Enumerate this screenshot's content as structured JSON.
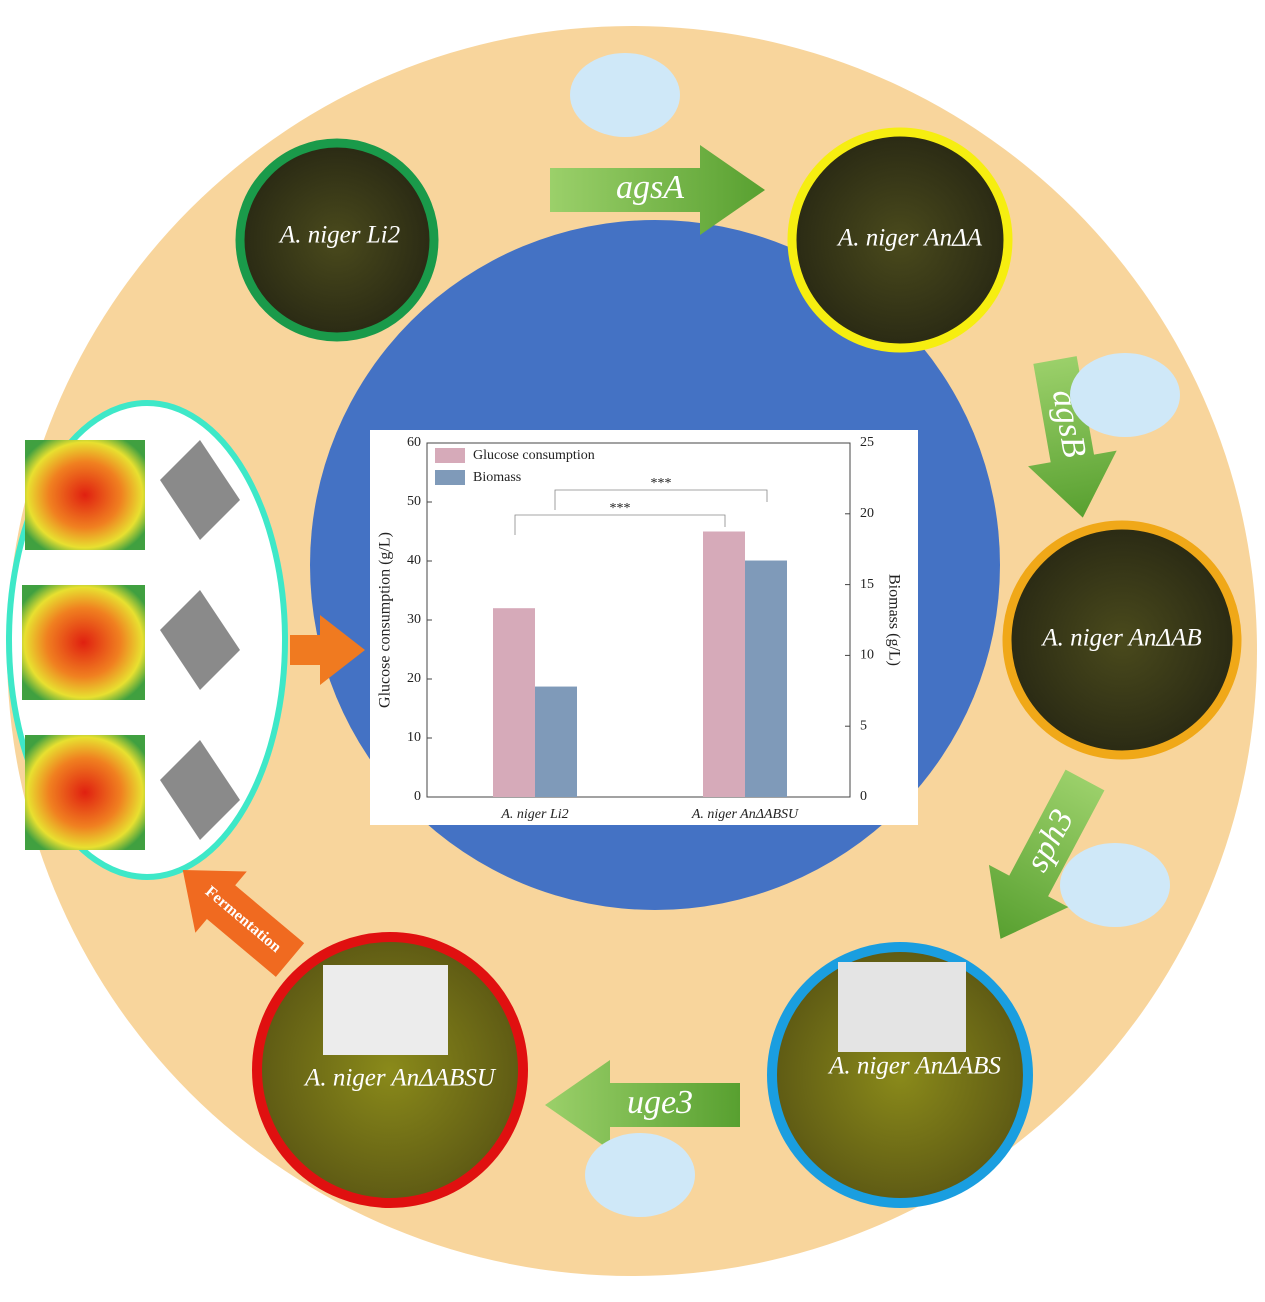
{
  "strains": [
    "A. niger Li2",
    "A. niger AnΔA",
    "A. niger AnΔAB",
    "A. niger AnΔABS",
    "A. niger AnΔABSU"
  ],
  "genes": [
    "agsA",
    "agsB",
    "sph3",
    "uge3"
  ],
  "fermentation_label": "Fermentation",
  "chart_data": {
    "type": "bar",
    "categories": [
      "A. niger Li2",
      "A. niger AnΔABSU"
    ],
    "series": [
      {
        "name": "Glucose consumption",
        "color": "#d6aab9",
        "values": [
          32,
          45
        ]
      },
      {
        "name": "Biomass",
        "color": "#7f9ab9",
        "values": [
          7.8,
          16.7
        ],
        "axis": "y2"
      }
    ],
    "ylabel": "Glucose consumption (g/L)",
    "y2label": "Biomass (g/L)",
    "ylim": [
      0,
      60
    ],
    "yticks": [
      0,
      10,
      20,
      30,
      40,
      50,
      60
    ],
    "y2lim": [
      0,
      25
    ],
    "y2ticks": [
      0,
      5,
      10,
      15,
      20,
      25
    ],
    "annotations": [
      "***",
      "***"
    ],
    "legend": "upper left"
  }
}
